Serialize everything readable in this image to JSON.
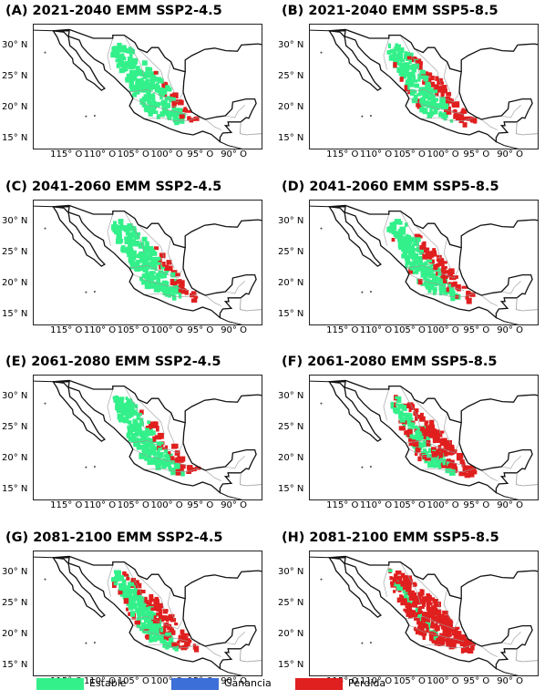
{
  "panels": [
    {
      "title": "(A) 2021-2040 EMM SSP2-4.5",
      "stable": 0.85,
      "loss": 0.35
    },
    {
      "title": "(B) 2021-2040 EMM SSP5-8.5",
      "stable": 0.55,
      "loss": 0.65
    },
    {
      "title": "(C) 2041-2060 EMM SSP2-4.5",
      "stable": 0.75,
      "loss": 0.45
    },
    {
      "title": "(D) 2041-2060 EMM SSP5-8.5",
      "stable": 0.6,
      "loss": 0.6
    },
    {
      "title": "(E) 2061-2080 EMM SSP2-4.5",
      "stable": 0.6,
      "loss": 0.6
    },
    {
      "title": "(F) 2061-2080 EMM SSP5-8.5",
      "stable": 0.4,
      "loss": 0.8
    },
    {
      "title": "(G) 2081-2100 EMM SSP2-4.5",
      "stable": 0.5,
      "loss": 0.75
    },
    {
      "title": "(H) 2081-2100 EMM SSP5-8.5",
      "stable": 0.15,
      "loss": 0.95
    }
  ],
  "y_ticks": [
    "30° N",
    "25° N",
    "20° N",
    "15° N"
  ],
  "x_ticks": [
    "115° O",
    "110° O",
    "105° O",
    "100° O",
    "95° O",
    "90° O"
  ],
  "legend": [
    {
      "label": "Estable",
      "color": "#33f08a"
    },
    {
      "label": "Ganancia",
      "color": "#3d6fd8"
    },
    {
      "label": "Pérdida",
      "color": "#e01f1f"
    }
  ],
  "colors": {
    "stable": "#33f08a",
    "gain": "#3d6fd8",
    "loss": "#e01f1f",
    "coast": "#111111",
    "states": "#9a9a9a"
  }
}
